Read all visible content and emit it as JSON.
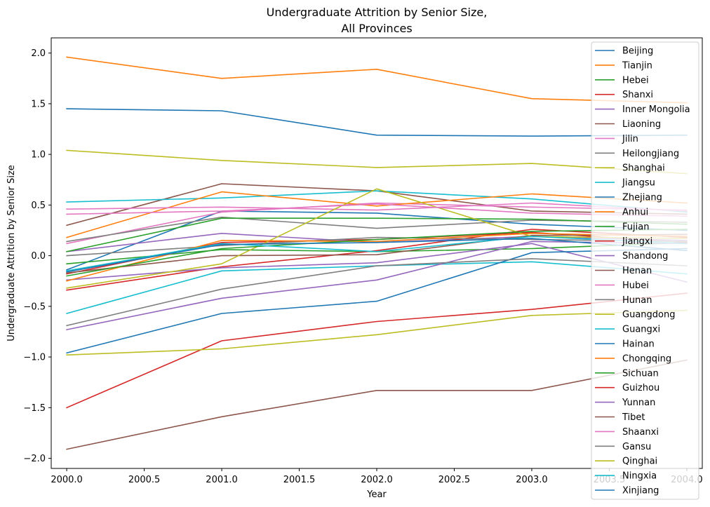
{
  "chart_data": {
    "type": "line",
    "title_lines": [
      "Undergraduate Attrition by Senior Size,",
      "All Provinces"
    ],
    "xlabel": "Year",
    "ylabel": "Undergraduate Attrition by Senior Size",
    "xlim": [
      1999.9,
      2004.1
    ],
    "ylim": [
      -2.1,
      2.15
    ],
    "x_ticks": [
      2000.0,
      2000.5,
      2001.0,
      2001.5,
      2002.0,
      2002.5,
      2003.0,
      2003.5,
      2004.0
    ],
    "x_tick_labels": [
      "2000.0",
      "2000.5",
      "2001.0",
      "2001.5",
      "2002.0",
      "2002.5",
      "2003.0",
      "2003.5",
      "2004.0"
    ],
    "y_ticks": [
      -2.0,
      -1.5,
      -1.0,
      -0.5,
      0.0,
      0.5,
      1.0,
      1.5,
      2.0
    ],
    "y_tick_labels": [
      "−2.0",
      "−1.5",
      "−1.0",
      "−0.5",
      "0.0",
      "0.5",
      "1.0",
      "1.5",
      "2.0"
    ],
    "grid": false,
    "legend_position": "right",
    "x": [
      2000,
      2001,
      2002,
      2003,
      2004
    ],
    "series": [
      {
        "name": "Beijing",
        "color": "#1f77b4",
        "values": [
          -0.14,
          0.44,
          0.42,
          0.31,
          0.25
        ]
      },
      {
        "name": "Tianjin",
        "color": "#ff7f0e",
        "values": [
          1.96,
          1.75,
          1.84,
          1.55,
          1.51
        ]
      },
      {
        "name": "Hebei",
        "color": "#2ca02c",
        "values": [
          -0.08,
          0.06,
          0.04,
          0.07,
          0.13
        ]
      },
      {
        "name": "Shanxi",
        "color": "#d62728",
        "values": [
          -0.18,
          0.13,
          0.16,
          0.23,
          0.13
        ]
      },
      {
        "name": "Inner Mongolia",
        "color": "#9467bd",
        "values": [
          0.04,
          0.22,
          0.13,
          0.19,
          0.15
        ]
      },
      {
        "name": "Liaoning",
        "color": "#8c564b",
        "values": [
          0.3,
          0.71,
          0.64,
          0.44,
          0.41
        ]
      },
      {
        "name": "Jilin",
        "color": "#e377c2",
        "values": [
          0.12,
          0.43,
          0.52,
          0.48,
          0.45
        ]
      },
      {
        "name": "Heilongjiang",
        "color": "#7f7f7f",
        "values": [
          0.14,
          0.38,
          0.27,
          0.35,
          0.33
        ]
      },
      {
        "name": "Shanghai",
        "color": "#bcbd22",
        "values": [
          1.04,
          0.94,
          0.87,
          0.91,
          0.81
        ]
      },
      {
        "name": "Jiangsu",
        "color": "#17becf",
        "values": [
          0.53,
          0.57,
          0.64,
          0.56,
          0.43
        ]
      },
      {
        "name": "Zhejiang",
        "color": "#1f77b4",
        "values": [
          1.45,
          1.43,
          1.19,
          1.18,
          1.19
        ]
      },
      {
        "name": "Anhui",
        "color": "#ff7f0e",
        "values": [
          0.18,
          0.63,
          0.49,
          0.61,
          0.52
        ]
      },
      {
        "name": "Fujian",
        "color": "#2ca02c",
        "values": [
          0.04,
          0.37,
          0.37,
          0.36,
          0.31
        ]
      },
      {
        "name": "Jiangxi",
        "color": "#d62728",
        "values": [
          -0.34,
          -0.11,
          0.05,
          0.26,
          0.18
        ]
      },
      {
        "name": "Shandong",
        "color": "#9467bd",
        "values": [
          -0.24,
          -0.12,
          -0.07,
          0.12,
          -0.26
        ]
      },
      {
        "name": "Henan",
        "color": "#8c564b",
        "values": [
          -0.17,
          0.0,
          0.01,
          0.2,
          0.21
        ]
      },
      {
        "name": "Hubei",
        "color": "#e377c2",
        "values": [
          0.46,
          0.48,
          0.45,
          0.52,
          0.44
        ]
      },
      {
        "name": "Hunan",
        "color": "#7f7f7f",
        "values": [
          0.0,
          0.1,
          0.18,
          0.16,
          0.14
        ]
      },
      {
        "name": "Guangdong",
        "color": "#bcbd22",
        "values": [
          -0.32,
          -0.08,
          0.66,
          0.19,
          0.17
        ]
      },
      {
        "name": "Guangxi",
        "color": "#17becf",
        "values": [
          -0.57,
          -0.15,
          -0.1,
          -0.06,
          -0.18
        ]
      },
      {
        "name": "Hainan",
        "color": "#1f77b4",
        "values": [
          -0.96,
          -0.57,
          -0.45,
          0.03,
          0.07
        ]
      },
      {
        "name": "Chongqing",
        "color": "#ff7f0e",
        "values": [
          -0.25,
          0.15,
          0.14,
          0.22,
          0.19
        ]
      },
      {
        "name": "Sichuan",
        "color": "#2ca02c",
        "values": [
          -0.2,
          0.07,
          0.16,
          0.24,
          0.26
        ]
      },
      {
        "name": "Guizhou",
        "color": "#d62728",
        "values": [
          -1.5,
          -0.84,
          -0.65,
          -0.53,
          -0.37
        ]
      },
      {
        "name": "Yunnan",
        "color": "#9467bd",
        "values": [
          -0.73,
          -0.42,
          -0.24,
          0.14,
          0.12
        ]
      },
      {
        "name": "Tibet",
        "color": "#8c564b",
        "values": [
          -1.91,
          -1.59,
          -1.33,
          -1.33,
          -1.03
        ]
      },
      {
        "name": "Shaanxi",
        "color": "#e377c2",
        "values": [
          0.41,
          0.44,
          0.51,
          0.42,
          0.39
        ]
      },
      {
        "name": "Gansu",
        "color": "#7f7f7f",
        "values": [
          -0.69,
          -0.33,
          -0.1,
          -0.03,
          -0.1
        ]
      },
      {
        "name": "Qinghai",
        "color": "#bcbd22",
        "values": [
          -0.98,
          -0.92,
          -0.78,
          -0.59,
          -0.54
        ]
      },
      {
        "name": "Ningxia",
        "color": "#17becf",
        "values": [
          -0.15,
          0.12,
          0.04,
          0.19,
          0.12
        ]
      },
      {
        "name": "Xinjiang",
        "color": "#1f77b4",
        "values": [
          -0.16,
          0.11,
          0.13,
          0.17,
          0.05
        ]
      }
    ]
  }
}
